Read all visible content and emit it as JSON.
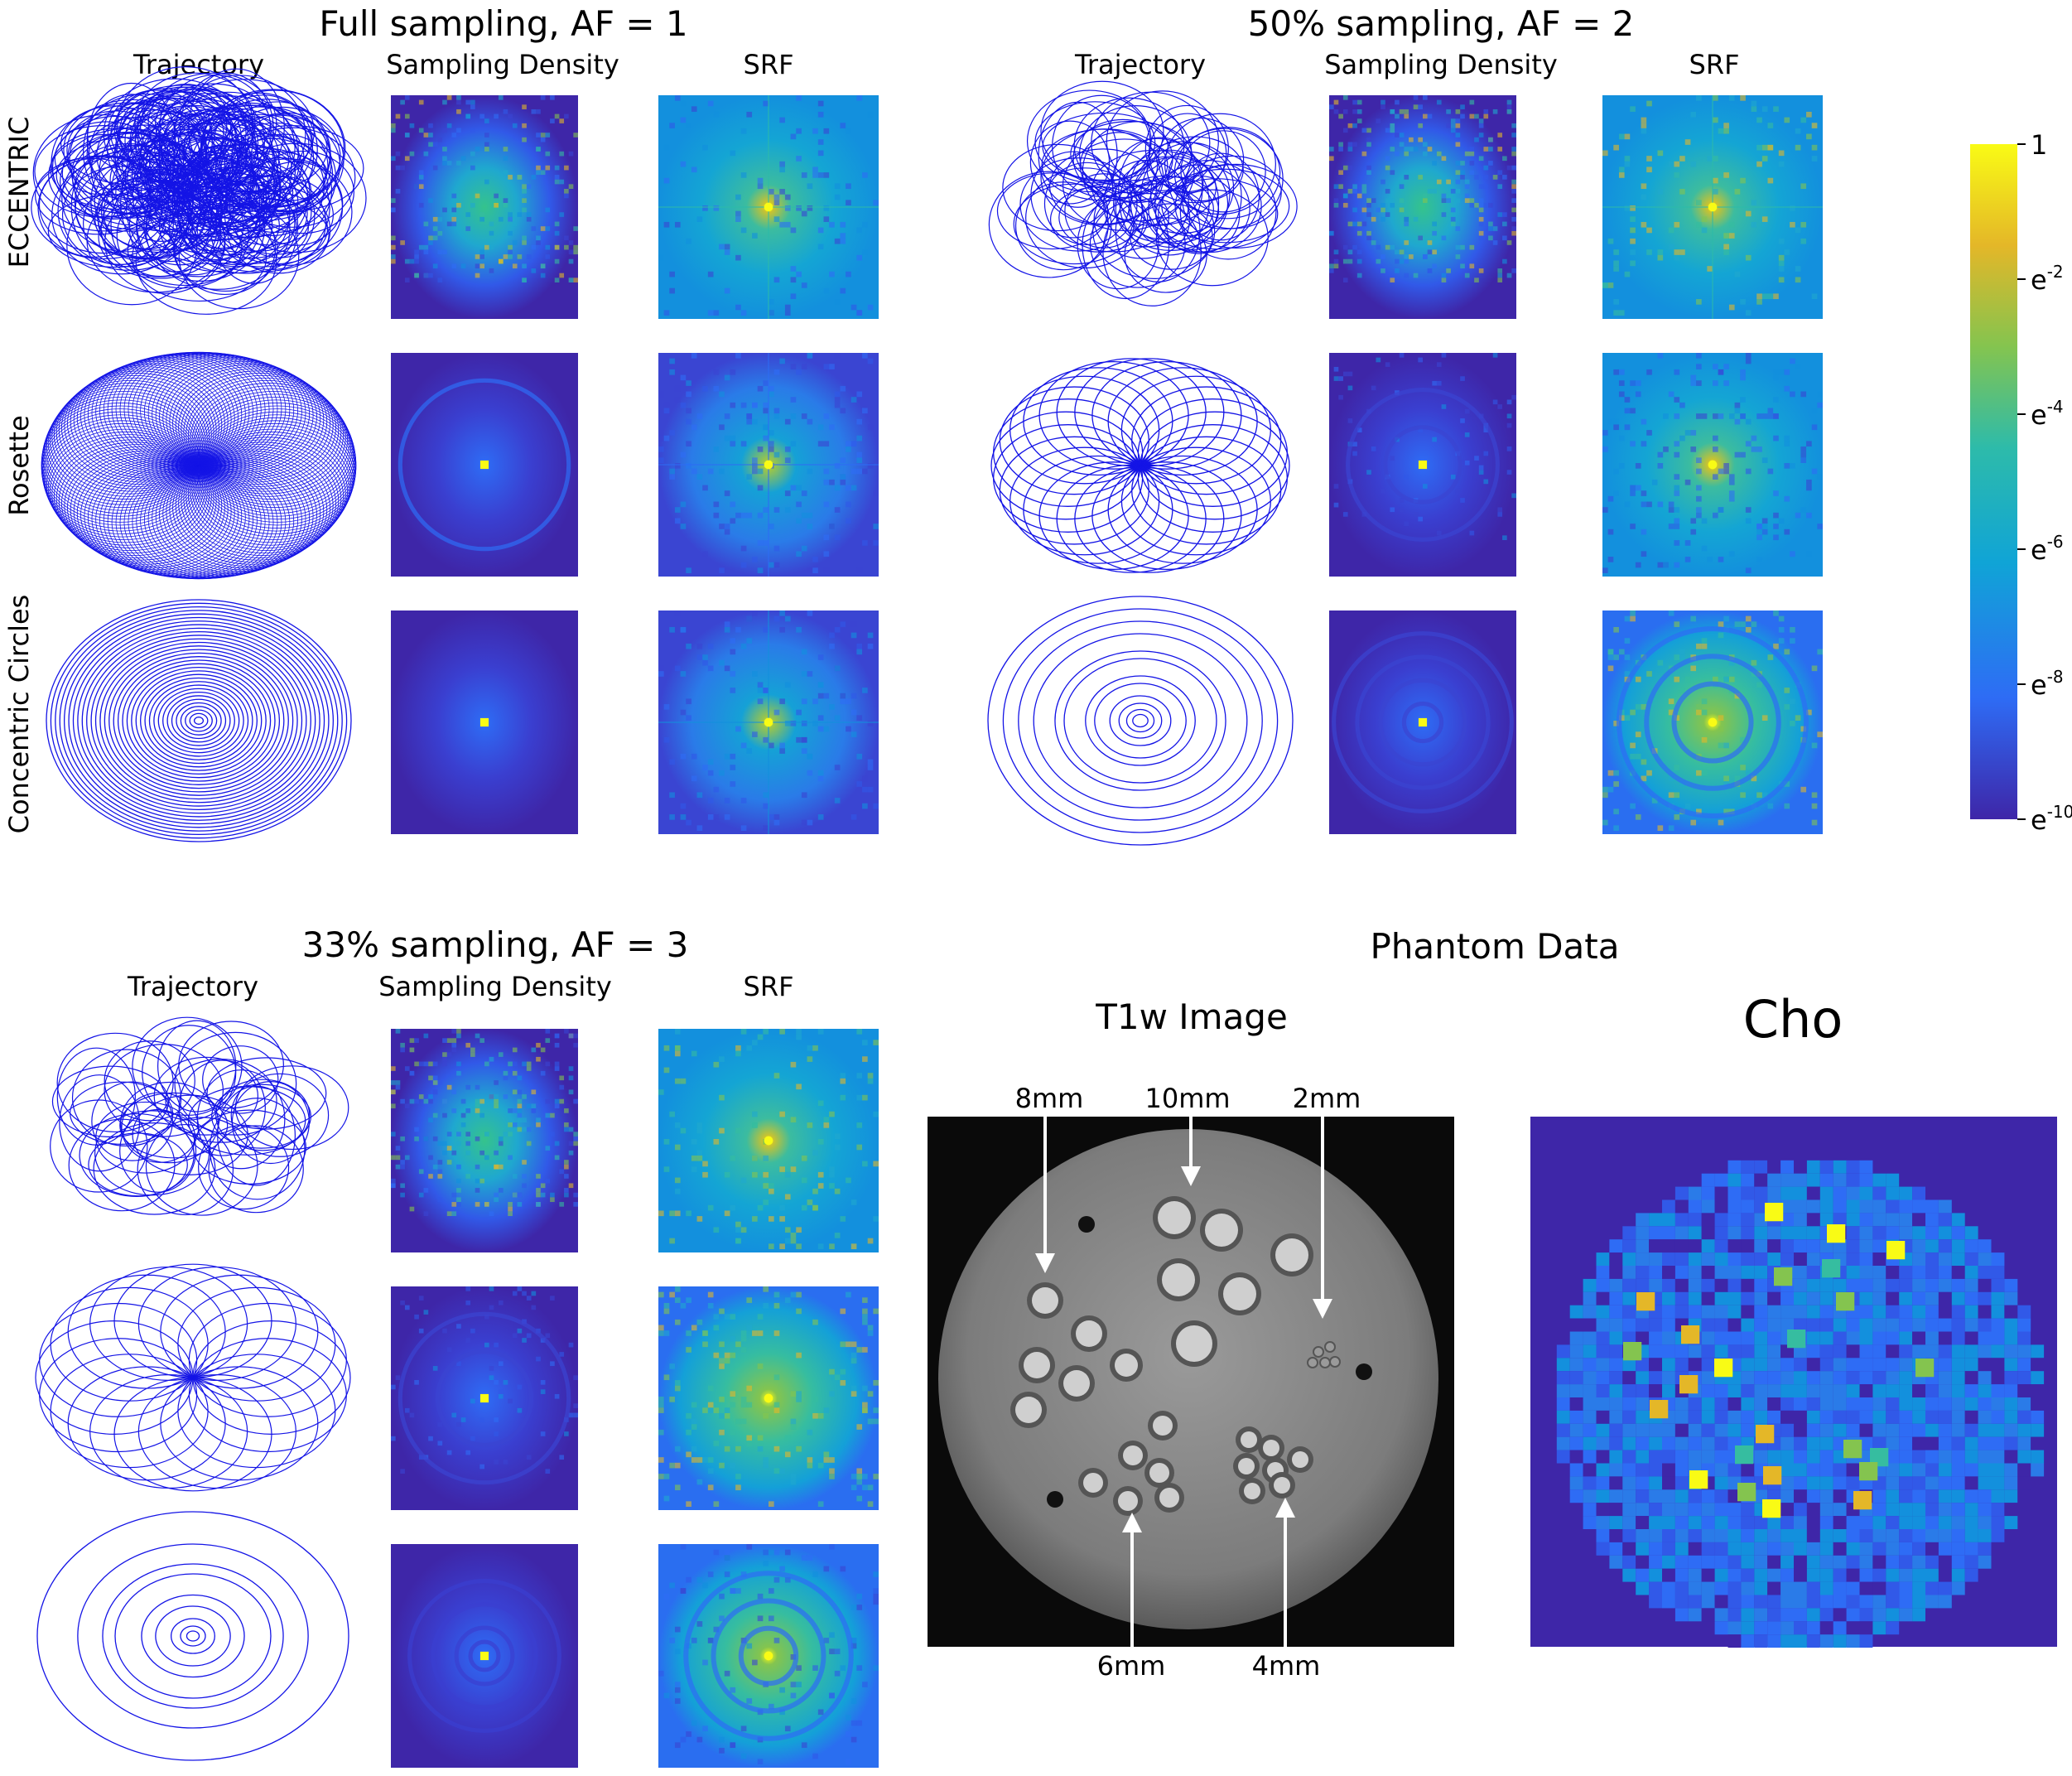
{
  "panels": {
    "full": {
      "title": "Full sampling, AF = 1",
      "col_traj": "Trajectory",
      "col_dens": "Sampling Density",
      "col_srf": "SRF"
    },
    "half": {
      "title": "50% sampling, AF = 2",
      "col_traj": "Trajectory",
      "col_dens": "Sampling Density",
      "col_srf": "SRF"
    },
    "third": {
      "title": "33% sampling, AF = 3",
      "col_traj": "Trajectory",
      "col_dens": "Sampling Density",
      "col_srf": "SRF"
    }
  },
  "row_labels": [
    "ECCENTRIC",
    "Rosette",
    "Concentric Circles"
  ],
  "colorbar": {
    "ticks": [
      {
        "base": "1",
        "exp": ""
      },
      {
        "base": "e",
        "exp": "-2"
      },
      {
        "base": "e",
        "exp": "-4"
      },
      {
        "base": "e",
        "exp": "-6"
      },
      {
        "base": "e",
        "exp": "-8"
      },
      {
        "base": "e",
        "exp": "-10"
      }
    ],
    "colors": [
      "#3e26a8",
      "#2e6cf5",
      "#10a4d6",
      "#2dbbaa",
      "#84c44f",
      "#e4b728",
      "#f9fb15"
    ]
  },
  "phantom": {
    "title": "Phantom Data",
    "t1w_title": "T1w Image",
    "cho_title": "Cho",
    "labels": {
      "l8": "8mm",
      "l10": "10mm",
      "l2": "2mm",
      "l6": "6mm",
      "l4": "4mm"
    }
  },
  "colors": {
    "trajectory": "#1414e6",
    "heat_bg": "#3e26a8"
  }
}
